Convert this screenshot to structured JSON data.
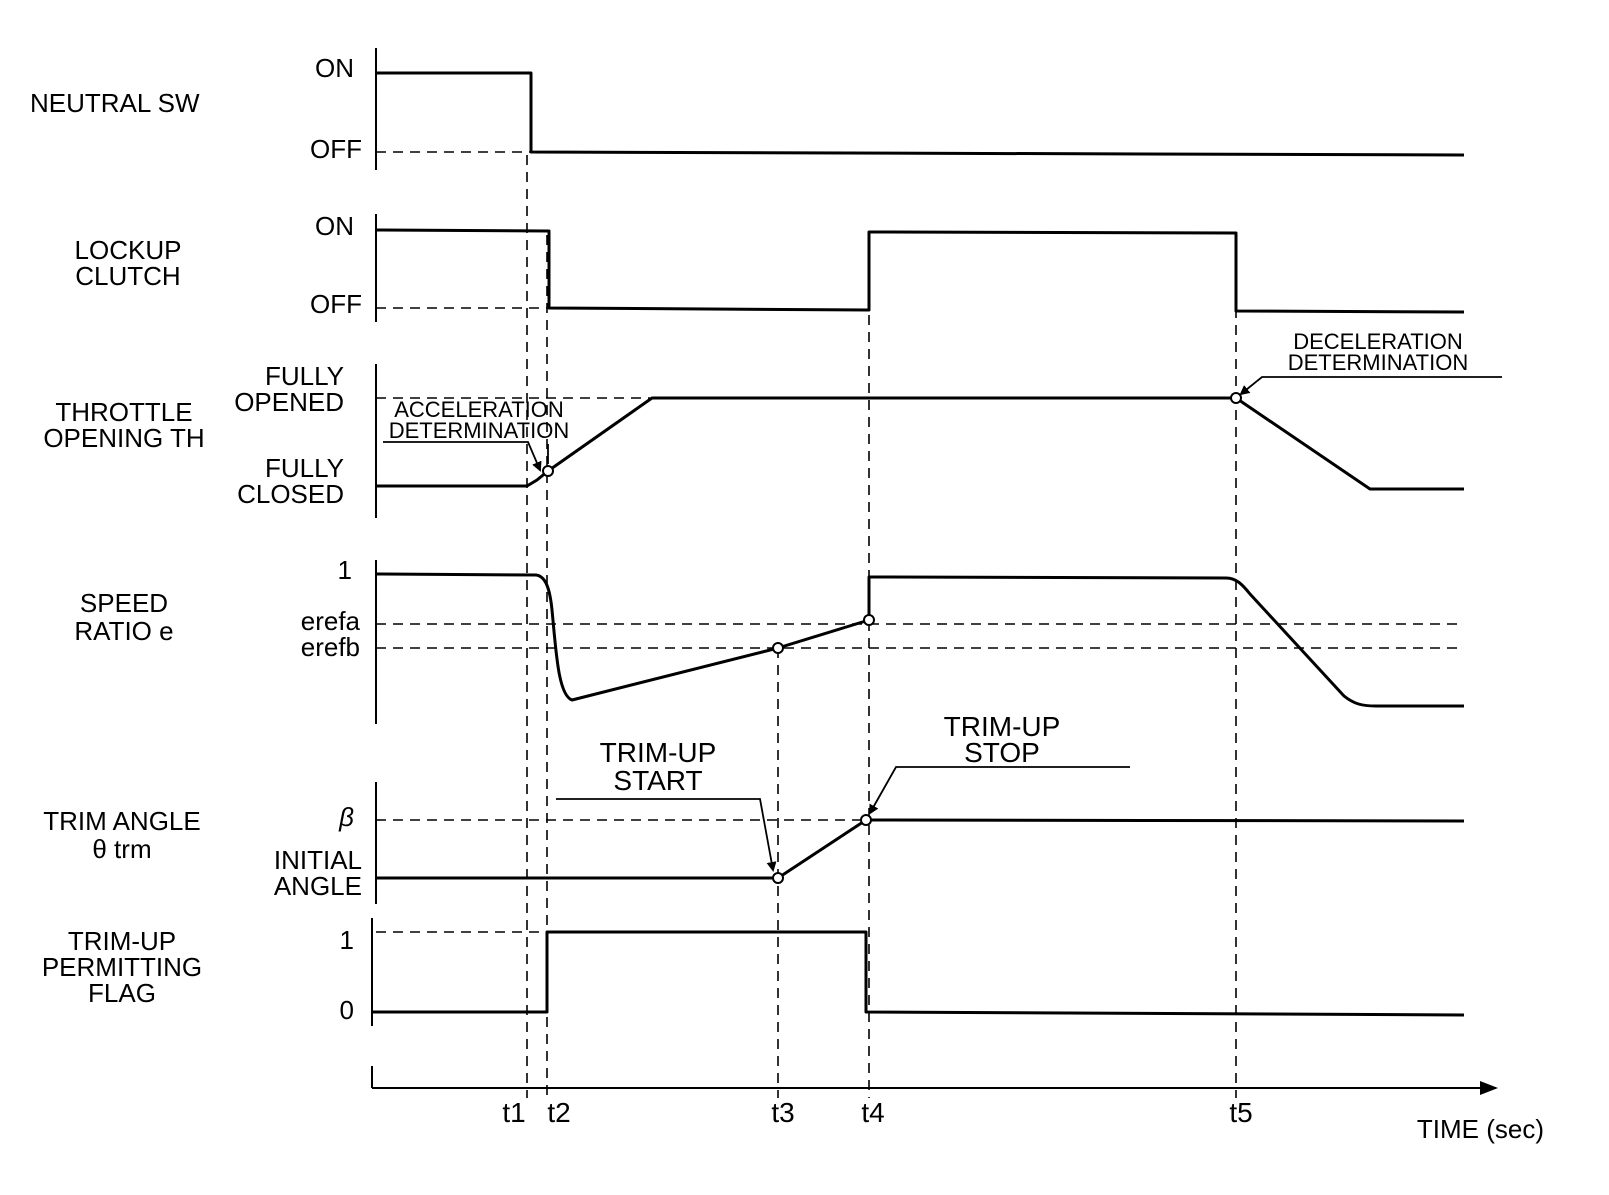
{
  "rows": {
    "neutral_sw": {
      "label": [
        "NEUTRAL SW"
      ],
      "levels": [
        "ON",
        "OFF"
      ]
    },
    "lockup_clutch": {
      "label": [
        "LOCKUP",
        "CLUTCH"
      ],
      "levels": [
        "ON",
        "OFF"
      ]
    },
    "throttle": {
      "label": [
        "THROTTLE",
        "OPENING TH"
      ],
      "levels": [
        "FULLY",
        "OPENED",
        "FULLY",
        "CLOSED"
      ]
    },
    "speed_ratio": {
      "label": [
        "SPEED",
        "RATIO e"
      ],
      "levels": [
        "1",
        "erefa",
        "erefb"
      ]
    },
    "trim_angle": {
      "label": [
        "TRIM ANGLE",
        "θ trm"
      ],
      "levels": [
        "β",
        "INITIAL",
        "ANGLE"
      ]
    },
    "trim_flag": {
      "label": [
        "TRIM-UP",
        "PERMITTING",
        "FLAG"
      ],
      "levels": [
        "1",
        "0"
      ]
    }
  },
  "annotations": {
    "acceleration": [
      "ACCELERATION",
      "DETERMINATION"
    ],
    "deceleration": [
      "DECELERATION",
      "DETERMINATION"
    ],
    "trim_start": [
      "TRIM-UP",
      "START"
    ],
    "trim_stop": [
      "TRIM-UP",
      "STOP"
    ]
  },
  "time_axis": {
    "label": "TIME (sec)",
    "ticks": [
      "t1",
      "t2",
      "t3",
      "t4",
      "t5"
    ]
  }
}
